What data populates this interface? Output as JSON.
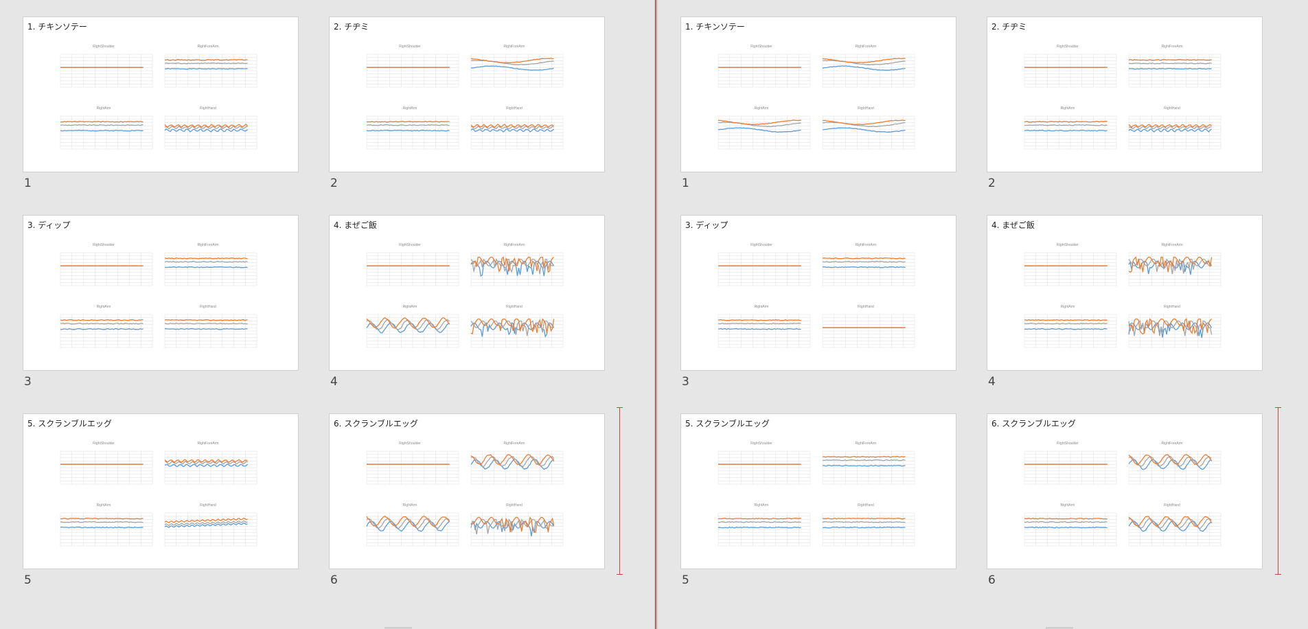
{
  "colors": {
    "blue": "#5b9bd5",
    "orange": "#ed7d31",
    "gray": "#a5a5a5"
  },
  "chart_labels": {
    "shoulder": "RightShoulder",
    "forearm": "RightForeArm",
    "arm": "RightArm",
    "hand": "RightHand"
  },
  "panes": [
    {
      "slides": [
        {
          "title": "1. チキンソテー",
          "number": "1",
          "patterns": [
            "flat",
            "bands",
            "bands",
            "wiggle"
          ]
        },
        {
          "title": "2. チヂミ",
          "number": "2",
          "patterns": [
            "flat",
            "hump",
            "bands",
            "wiggle"
          ]
        },
        {
          "title": "3. ディップ",
          "number": "3",
          "patterns": [
            "flat",
            "bands",
            "bands",
            "bands"
          ]
        },
        {
          "title": "4. まぜご飯",
          "number": "4",
          "patterns": [
            "flat",
            "spiky",
            "wave",
            "spiky"
          ]
        },
        {
          "title": "5. スクランブルエッグ",
          "number": "5",
          "patterns": [
            "flat",
            "wiggle",
            "bands",
            "rising"
          ]
        },
        {
          "title": "6. スクランブルエッグ",
          "number": "6",
          "patterns": [
            "flat",
            "wave",
            "wave",
            "spiky"
          ]
        }
      ]
    },
    {
      "slides": [
        {
          "title": "1. チキンソテー",
          "number": "1",
          "patterns": [
            "flat",
            "hump",
            "hump",
            "hump"
          ]
        },
        {
          "title": "2. チヂミ",
          "number": "2",
          "patterns": [
            "flat",
            "bands",
            "bands",
            "wiggle"
          ]
        },
        {
          "title": "3. ディップ",
          "number": "3",
          "patterns": [
            "flat",
            "bands",
            "bands",
            "flat"
          ]
        },
        {
          "title": "4. まぜご飯",
          "number": "4",
          "patterns": [
            "flat",
            "spiky",
            "bands",
            "spiky"
          ]
        },
        {
          "title": "5. スクランブルエッグ",
          "number": "5",
          "patterns": [
            "flat",
            "bands",
            "bands",
            "bands"
          ]
        },
        {
          "title": "6. スクランブルエッグ",
          "number": "6",
          "patterns": [
            "flat",
            "wave",
            "bands",
            "wave"
          ]
        }
      ]
    }
  ]
}
